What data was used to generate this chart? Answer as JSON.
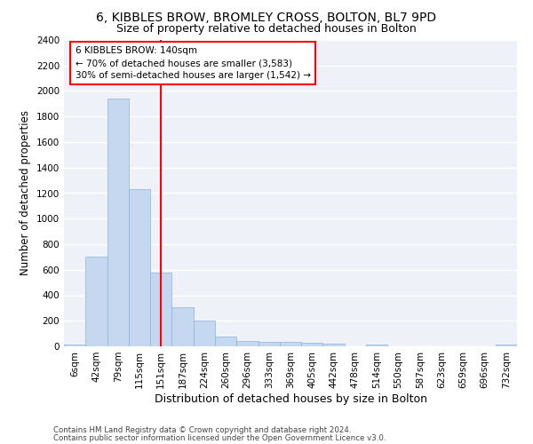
{
  "title1": "6, KIBBLES BROW, BROMLEY CROSS, BOLTON, BL7 9PD",
  "title2": "Size of property relative to detached houses in Bolton",
  "xlabel": "Distribution of detached houses by size in Bolton",
  "ylabel": "Number of detached properties",
  "bar_color": "#c5d8f0",
  "bar_edge_color": "#8ab4d8",
  "categories": [
    "6sqm",
    "42sqm",
    "79sqm",
    "115sqm",
    "151sqm",
    "187sqm",
    "224sqm",
    "260sqm",
    "296sqm",
    "333sqm",
    "369sqm",
    "405sqm",
    "442sqm",
    "478sqm",
    "514sqm",
    "550sqm",
    "587sqm",
    "623sqm",
    "659sqm",
    "696sqm",
    "732sqm"
  ],
  "values": [
    15,
    700,
    1940,
    1230,
    575,
    305,
    200,
    80,
    45,
    35,
    35,
    30,
    20,
    0,
    15,
    0,
    0,
    0,
    0,
    0,
    15
  ],
  "property_line_x": 4.0,
  "annotation_text": "6 KIBBLES BROW: 140sqm\n← 70% of detached houses are smaller (3,583)\n30% of semi-detached houses are larger (1,542) →",
  "annotation_box_color": "white",
  "annotation_border_color": "red",
  "line_color": "red",
  "ylim": [
    0,
    2400
  ],
  "yticks": [
    0,
    200,
    400,
    600,
    800,
    1000,
    1200,
    1400,
    1600,
    1800,
    2000,
    2200,
    2400
  ],
  "footer1": "Contains HM Land Registry data © Crown copyright and database right 2024.",
  "footer2": "Contains public sector information licensed under the Open Government Licence v3.0.",
  "background_color": "#eef2f8",
  "grid_color": "#ffffff",
  "title1_fontsize": 10,
  "title2_fontsize": 9,
  "xlabel_fontsize": 9,
  "ylabel_fontsize": 8.5,
  "annotation_fontsize": 7.5,
  "tick_fontsize": 7.5,
  "footer_fontsize": 6.2
}
